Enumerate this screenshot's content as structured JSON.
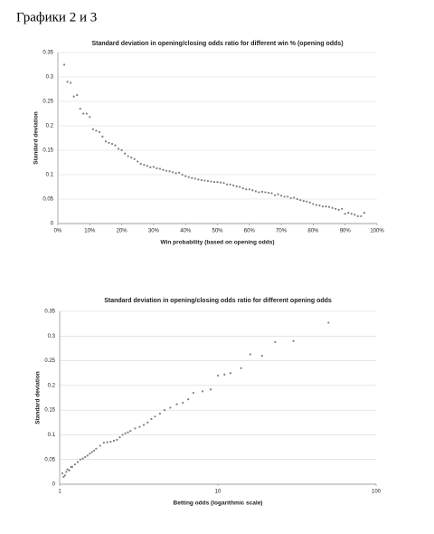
{
  "heading": "Графики 2 и 3",
  "chart_data": [
    {
      "type": "scatter",
      "title": "Standard deviation in opening/closing odds ratio for different win % (opening odds)",
      "x_label": "Win probability (based on opening odds)",
      "y_label": "Standard deviation",
      "color": "#808080",
      "grid": true,
      "xlim": [
        0,
        100
      ],
      "ylim": [
        0,
        0.35
      ],
      "xticks": [
        {
          "value": 0,
          "label": "0%"
        },
        {
          "value": 10,
          "label": "10%"
        },
        {
          "value": 20,
          "label": "20%"
        },
        {
          "value": 30,
          "label": "30%"
        },
        {
          "value": 40,
          "label": "40%"
        },
        {
          "value": 50,
          "label": "50%"
        },
        {
          "value": 60,
          "label": "60%"
        },
        {
          "value": 70,
          "label": "70%"
        },
        {
          "value": 80,
          "label": "80%"
        },
        {
          "value": 90,
          "label": "90%"
        },
        {
          "value": 100,
          "label": "100%"
        }
      ],
      "yticks": [
        0,
        0.05,
        0.1,
        0.15,
        0.2,
        0.25,
        0.3,
        0.35
      ],
      "x": [
        2,
        3,
        4,
        5,
        6,
        7,
        8,
        9,
        10,
        11,
        12,
        13,
        14,
        15,
        16,
        17,
        18,
        19,
        20,
        21,
        22,
        23,
        24,
        25,
        26,
        27,
        28,
        29,
        30,
        31,
        32,
        33,
        34,
        35,
        36,
        37,
        38,
        39,
        40,
        41,
        42,
        43,
        44,
        45,
        46,
        47,
        48,
        49,
        50,
        51,
        52,
        53,
        54,
        55,
        56,
        57,
        58,
        59,
        60,
        61,
        62,
        63,
        64,
        65,
        66,
        67,
        68,
        69,
        70,
        71,
        72,
        73,
        74,
        75,
        76,
        77,
        78,
        79,
        80,
        81,
        82,
        83,
        84,
        85,
        86,
        87,
        88,
        89,
        90,
        91,
        92,
        93,
        94,
        95,
        96
      ],
      "values": [
        0.325,
        0.29,
        0.288,
        0.26,
        0.263,
        0.235,
        0.225,
        0.225,
        0.218,
        0.193,
        0.19,
        0.187,
        0.178,
        0.168,
        0.165,
        0.163,
        0.16,
        0.153,
        0.15,
        0.143,
        0.138,
        0.135,
        0.132,
        0.127,
        0.122,
        0.12,
        0.118,
        0.115,
        0.116,
        0.113,
        0.112,
        0.11,
        0.108,
        0.107,
        0.105,
        0.103,
        0.104,
        0.1,
        0.097,
        0.095,
        0.093,
        0.092,
        0.09,
        0.089,
        0.088,
        0.087,
        0.086,
        0.085,
        0.085,
        0.084,
        0.083,
        0.08,
        0.08,
        0.078,
        0.076,
        0.075,
        0.072,
        0.07,
        0.07,
        0.068,
        0.066,
        0.064,
        0.065,
        0.064,
        0.063,
        0.062,
        0.058,
        0.06,
        0.057,
        0.055,
        0.055,
        0.052,
        0.053,
        0.05,
        0.048,
        0.046,
        0.045,
        0.043,
        0.04,
        0.038,
        0.037,
        0.035,
        0.035,
        0.034,
        0.032,
        0.03,
        0.028,
        0.03,
        0.02,
        0.022,
        0.02,
        0.018,
        0.015,
        0.015,
        0.022
      ]
    },
    {
      "type": "scatter",
      "log_x": true,
      "title": "Standard deviation in opening/closing odds ratio for different opening odds",
      "x_label": "Betting odds (logarithmic scale)",
      "y_label": "Standard deviation",
      "color": "#808080",
      "grid": true,
      "xlim": [
        1,
        100
      ],
      "ylim": [
        0,
        0.35
      ],
      "xticks": [
        1,
        10,
        100
      ],
      "yticks": [
        0,
        0.05,
        0.1,
        0.15,
        0.2,
        0.25,
        0.3,
        0.35
      ],
      "x": [
        1.04,
        1.06,
        1.08,
        1.1,
        1.12,
        1.15,
        1.18,
        1.2,
        1.25,
        1.3,
        1.35,
        1.4,
        1.45,
        1.5,
        1.55,
        1.6,
        1.65,
        1.7,
        1.8,
        1.9,
        2.0,
        2.1,
        2.2,
        2.3,
        2.4,
        2.5,
        2.6,
        2.7,
        2.8,
        3.0,
        3.2,
        3.4,
        3.6,
        3.8,
        4.0,
        4.3,
        4.6,
        5.0,
        5.5,
        6.0,
        6.5,
        7.0,
        8.0,
        9.0,
        10,
        11,
        12,
        14,
        16,
        19,
        23,
        30,
        50
      ],
      "values": [
        0.022,
        0.015,
        0.018,
        0.025,
        0.03,
        0.028,
        0.035,
        0.035,
        0.04,
        0.045,
        0.05,
        0.052,
        0.055,
        0.058,
        0.062,
        0.065,
        0.068,
        0.072,
        0.078,
        0.084,
        0.085,
        0.086,
        0.088,
        0.09,
        0.095,
        0.1,
        0.103,
        0.105,
        0.108,
        0.113,
        0.116,
        0.12,
        0.125,
        0.132,
        0.137,
        0.143,
        0.15,
        0.155,
        0.162,
        0.165,
        0.172,
        0.185,
        0.188,
        0.192,
        0.22,
        0.222,
        0.225,
        0.235,
        0.263,
        0.26,
        0.288,
        0.29,
        0.327
      ]
    }
  ]
}
